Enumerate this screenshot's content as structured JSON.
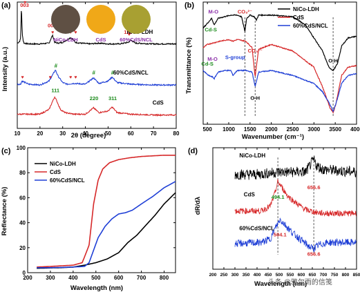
{
  "colors": {
    "black": "#000000",
    "red": "#d62728",
    "blue": "#1f3fd6",
    "green": "#1a8a1a",
    "purple": "#8b2fa8",
    "darkred": "#b3170f"
  },
  "chart_data": [
    {
      "id": "a",
      "type": "line",
      "panel": "(a)",
      "xlabel": "2θ (degree)",
      "ylabel": "Intensity (a.u.)",
      "xlim": [
        10,
        80
      ],
      "xticks": [
        10,
        20,
        30,
        40,
        50,
        60,
        70,
        80
      ],
      "yticks_shown": false,
      "series": [
        {
          "name": "NiCo-LDH",
          "color": "#000000",
          "x": [
            10,
            11,
            11.5,
            11.8,
            12.2,
            12.6,
            13,
            15,
            20,
            24,
            25.5,
            26.5,
            28,
            30,
            33.5,
            34.5,
            35.5,
            38,
            42,
            46,
            50,
            55,
            59,
            60,
            62,
            70,
            80
          ],
          "y": [
            0.74,
            0.75,
            0.77,
            0.98,
            0.8,
            0.755,
            0.74,
            0.735,
            0.735,
            0.74,
            0.79,
            0.745,
            0.74,
            0.745,
            0.775,
            0.765,
            0.745,
            0.74,
            0.735,
            0.74,
            0.735,
            0.735,
            0.745,
            0.76,
            0.74,
            0.735,
            0.735
          ]
        },
        {
          "name": "60%CdS/NCL",
          "color": "#1f3fd6",
          "x": [
            10,
            11.5,
            12,
            15,
            20,
            24,
            26,
            26.8,
            28,
            30,
            32,
            35,
            40,
            43.6,
            46,
            50,
            51.8,
            54,
            60,
            70,
            80
          ],
          "y": [
            0.48,
            0.48,
            0.5,
            0.48,
            0.475,
            0.5,
            0.55,
            0.57,
            0.53,
            0.49,
            0.48,
            0.485,
            0.48,
            0.52,
            0.485,
            0.5,
            0.525,
            0.49,
            0.48,
            0.475,
            0.475
          ]
        },
        {
          "name": "CdS",
          "color": "#d62728",
          "x": [
            10,
            15,
            20,
            24,
            25.5,
            26.5,
            27.5,
            29,
            31,
            35,
            40,
            43.6,
            46,
            50,
            51.8,
            54,
            60,
            70,
            80
          ],
          "y": [
            0.29,
            0.29,
            0.29,
            0.32,
            0.37,
            0.4,
            0.37,
            0.32,
            0.3,
            0.29,
            0.29,
            0.33,
            0.3,
            0.31,
            0.335,
            0.3,
            0.29,
            0.285,
            0.285
          ]
        }
      ],
      "annotations": [
        {
          "text": "003",
          "x": 13.2,
          "y": 0.97,
          "color": "#d62728"
        },
        {
          "text": "003",
          "x": 25.3,
          "y": 0.84,
          "color": "#d62728"
        },
        {
          "text": "012",
          "x": 33.3,
          "y": 0.84,
          "color": "#d62728",
          "rotate": true
        },
        {
          "text": "015",
          "x": 35.6,
          "y": 0.84,
          "color": "#d62728",
          "rotate": true
        },
        {
          "text": "110",
          "x": 58.8,
          "y": 0.8,
          "color": "#d62728"
        },
        {
          "text": "111",
          "x": 26.8,
          "y": 0.43,
          "color": "#1a8a1a"
        },
        {
          "text": "220",
          "x": 43.8,
          "y": 0.38,
          "color": "#1a8a1a"
        },
        {
          "text": "311",
          "x": 52,
          "y": 0.38,
          "color": "#1a8a1a"
        }
      ],
      "heart_markers_x": [
        13.4,
        25.6,
        33.5,
        35.7,
        59.3
      ],
      "heart_markers_blue_x": [
        12.3,
        24.5,
        33.5,
        35.7
      ],
      "hash_markers_x": [
        27,
        43.7,
        52
      ],
      "series_labels": [
        {
          "text": "NiCo-LDH",
          "x": 64,
          "y": 0.8
        },
        {
          "text": "60%CdS/NCL",
          "x": 60,
          "y": 0.54
        },
        {
          "text": "CdS",
          "x": 72,
          "y": 0.35
        }
      ],
      "photos": [
        {
          "label": "NiCo-LDH",
          "color": "#5f5044"
        },
        {
          "label": "CdS",
          "color": "#f0a818"
        },
        {
          "label": "60%CdS/NCL",
          "color": "#a8a032"
        }
      ]
    },
    {
      "id": "b",
      "type": "line",
      "panel": "(b)",
      "xlabel": "Wavenumber (cm⁻¹)",
      "ylabel": "Transmittance (%)",
      "xlim": [
        400,
        4000
      ],
      "xticks": [
        500,
        1000,
        1500,
        2000,
        2500,
        3000,
        3500,
        4000
      ],
      "yticks_shown": false,
      "legend": {
        "entries": [
          "NiCo-LDH",
          "CdS",
          "60%CdS/NCL"
        ],
        "position": "top-right"
      },
      "series": [
        {
          "name": "NiCo-LDH",
          "color": "#000000",
          "x": [
            400,
            500,
            600,
            660,
            750,
            900,
            1050,
            1200,
            1300,
            1380,
            1420,
            1500,
            1600,
            1650,
            1700,
            2000,
            2500,
            2800,
            3000,
            3200,
            3350,
            3450,
            3550,
            3650,
            3800,
            4000
          ],
          "y": [
            0.84,
            0.87,
            0.9,
            0.86,
            0.9,
            0.91,
            0.92,
            0.92,
            0.91,
            0.82,
            0.9,
            0.92,
            0.91,
            0.89,
            0.92,
            0.92,
            0.91,
            0.86,
            0.78,
            0.7,
            0.6,
            0.58,
            0.62,
            0.73,
            0.78,
            0.79
          ]
        },
        {
          "name": "CdS",
          "color": "#d62728",
          "x": [
            400,
            500,
            650,
            800,
            1000,
            1100,
            1200,
            1400,
            1550,
            1620,
            1700,
            2000,
            2500,
            3000,
            3200,
            3380,
            3450,
            3520,
            3650,
            3800,
            4000
          ],
          "y": [
            0.72,
            0.74,
            0.75,
            0.76,
            0.77,
            0.76,
            0.77,
            0.76,
            0.72,
            0.54,
            0.71,
            0.74,
            0.7,
            0.6,
            0.48,
            0.35,
            0.32,
            0.38,
            0.55,
            0.6,
            0.61
          ]
        },
        {
          "name": "60%CdS/NCL",
          "color": "#1f3fd6",
          "x": [
            400,
            520,
            620,
            660,
            750,
            900,
            1050,
            1100,
            1200,
            1400,
            1550,
            1620,
            1700,
            2000,
            2500,
            3000,
            3200,
            3380,
            3450,
            3520,
            3650,
            3800,
            4000
          ],
          "y": [
            0.58,
            0.55,
            0.54,
            0.53,
            0.57,
            0.58,
            0.58,
            0.55,
            0.58,
            0.58,
            0.57,
            0.48,
            0.57,
            0.58,
            0.55,
            0.5,
            0.45,
            0.37,
            0.33,
            0.38,
            0.5,
            0.55,
            0.56
          ]
        }
      ],
      "annotations": [
        {
          "text": "M-O",
          "x": 640,
          "y": 0.93,
          "color": "#8b2fa8"
        },
        {
          "text": "CO₃²⁻",
          "x": 1380,
          "y": 0.93,
          "color": "#d62728"
        },
        {
          "text": "Cd-S",
          "x": 580,
          "y": 0.82,
          "color": "#1a8a1a"
        },
        {
          "text": "S-group",
          "x": 1150,
          "y": 0.65,
          "color": "#1f3fd6"
        },
        {
          "text": "CO₃²⁻",
          "x": 1620,
          "y": 0.69,
          "color": "#d62728"
        },
        {
          "text": "O-H",
          "x": 3450,
          "y": 0.63,
          "color": "#000000"
        },
        {
          "text": "M-O",
          "x": 620,
          "y": 0.64,
          "color": "#8b2fa8"
        },
        {
          "text": "Cd-S",
          "x": 500,
          "y": 0.61,
          "color": "#1a8a1a"
        },
        {
          "text": "O-H",
          "x": 1620,
          "y": 0.4,
          "color": "#000000"
        }
      ],
      "dashed_lines_x": [
        1380,
        1620,
        3450
      ]
    },
    {
      "id": "c",
      "type": "line",
      "panel": "(c)",
      "xlabel": "Wavelength (nm)",
      "ylabel": "Reflectance (%)",
      "xlim": [
        200,
        850
      ],
      "ylim": [
        0,
        100
      ],
      "xticks": [
        200,
        300,
        400,
        500,
        600,
        700,
        800
      ],
      "yticks": [
        0,
        20,
        40,
        60,
        80,
        100
      ],
      "legend": {
        "entries": [
          "NiCo-LDH",
          "CdS",
          "60%CdS/NCL"
        ],
        "position": "top-left"
      },
      "series": [
        {
          "name": "NiCo-LDH",
          "color": "#000000",
          "x": [
            240,
            300,
            350,
            400,
            450,
            500,
            550,
            600,
            640,
            680,
            720,
            760,
            800,
            850
          ],
          "y": [
            3.5,
            3.8,
            4,
            4.5,
            6,
            8,
            11,
            16,
            24,
            30,
            38,
            46,
            55,
            64
          ]
        },
        {
          "name": "CdS",
          "color": "#d62728",
          "x": [
            240,
            300,
            350,
            400,
            440,
            470,
            490,
            510,
            530,
            560,
            600,
            650,
            700,
            750,
            800,
            850
          ],
          "y": [
            4.5,
            5,
            5.5,
            6,
            8,
            22,
            55,
            74,
            83,
            88,
            90.5,
            92,
            93,
            93.5,
            94,
            94
          ]
        },
        {
          "name": "60%CdS/NCL",
          "color": "#1f3fd6",
          "x": [
            240,
            300,
            350,
            400,
            450,
            470,
            490,
            510,
            540,
            570,
            600,
            630,
            660,
            700,
            750,
            800,
            850
          ],
          "y": [
            4,
            4,
            4.2,
            4.5,
            5,
            8,
            18,
            28,
            37,
            43,
            47,
            48,
            50,
            55,
            61,
            68,
            73
          ]
        }
      ]
    },
    {
      "id": "d",
      "type": "line",
      "panel": "(d)",
      "xlabel": "Wavelength (nm)",
      "ylabel": "dR/dλ",
      "xlim": [
        200,
        850
      ],
      "xticks": [
        200,
        250,
        300,
        350,
        400,
        450,
        500,
        550,
        600,
        650,
        700,
        750,
        800,
        850
      ],
      "yticks_shown": false,
      "series": [
        {
          "name": "NiCo-LDH",
          "color": "#000000",
          "label": "NiCo-LDH",
          "x": [
            300,
            400,
            500,
            560,
            620,
            645,
            656.6,
            670,
            700,
            850
          ],
          "y": [
            0.78,
            0.78,
            0.8,
            0.8,
            0.8,
            0.87,
            0.9,
            0.85,
            0.82,
            0.8
          ],
          "noise": 0.045
        },
        {
          "name": "CdS",
          "color": "#d62728",
          "label": "CdS",
          "x": [
            300,
            420,
            460,
            480,
            494.1,
            510,
            540,
            580,
            620,
            660,
            700,
            850
          ],
          "y": [
            0.48,
            0.48,
            0.52,
            0.62,
            0.72,
            0.68,
            0.6,
            0.54,
            0.49,
            0.47,
            0.46,
            0.46
          ],
          "noise": 0.025
        },
        {
          "name": "60%CdS/NCL",
          "color": "#1f3fd6",
          "label": "60%CdS/NCL",
          "x": [
            300,
            420,
            460,
            480,
            504.1,
            525,
            560,
            600,
            640,
            656.6,
            680,
            720,
            850
          ],
          "y": [
            0.21,
            0.22,
            0.25,
            0.33,
            0.41,
            0.37,
            0.3,
            0.24,
            0.18,
            0.17,
            0.2,
            0.22,
            0.22
          ],
          "noise": 0.03
        }
      ],
      "annotations": [
        {
          "text": "656.6",
          "x": 656.6,
          "y": 0.66,
          "color": "#d62728"
        },
        {
          "text": "494.1",
          "x": 494.1,
          "y": 0.58,
          "color": "#1a8a1a"
        },
        {
          "text": "504.1",
          "x": 504.1,
          "y": 0.27,
          "color": "#d62728"
        },
        {
          "text": "656.6",
          "x": 656.6,
          "y": 0.11,
          "color": "#d62728"
        }
      ],
      "dashed_lines_x": [
        494.1,
        656.6
      ]
    }
  ],
  "watermark": "头条 @雅尔雨的信笺"
}
